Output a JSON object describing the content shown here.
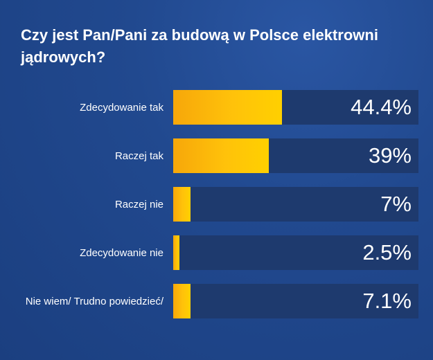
{
  "chart_data": {
    "type": "bar",
    "orientation": "horizontal",
    "title": "Czy jest Pan/Pani za budową w Polsce elektrowni jądrowych?",
    "categories": [
      "Zdecydowanie tak",
      "Raczej tak",
      "Raczej nie",
      "Zdecydowanie nie",
      "Nie wiem/ Trudno powiedzieć/"
    ],
    "values": [
      44.4,
      39,
      7,
      2.5,
      7.1
    ],
    "value_labels": [
      "44.4%",
      "39%",
      "7%",
      "2.5%",
      "7.1%"
    ],
    "xlim": [
      0,
      100
    ],
    "unit": "%",
    "grid": false,
    "legend": "none",
    "colors": {
      "background": "#1f4488",
      "track": "#1e3a6e",
      "bar": "#ffc20a",
      "bar_start": "#f7a70a",
      "text": "#ffffff"
    }
  }
}
